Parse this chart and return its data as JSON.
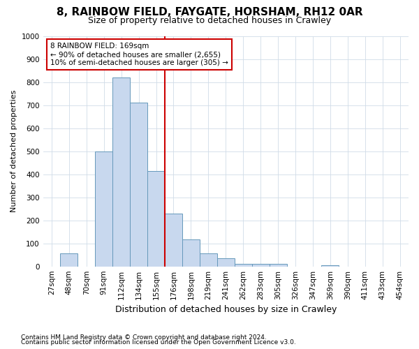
{
  "title": "8, RAINBOW FIELD, FAYGATE, HORSHAM, RH12 0AR",
  "subtitle": "Size of property relative to detached houses in Crawley",
  "xlabel": "Distribution of detached houses by size in Crawley",
  "ylabel": "Number of detached properties",
  "bins": [
    "27sqm",
    "48sqm",
    "70sqm",
    "91sqm",
    "112sqm",
    "134sqm",
    "155sqm",
    "176sqm",
    "198sqm",
    "219sqm",
    "241sqm",
    "262sqm",
    "283sqm",
    "305sqm",
    "326sqm",
    "347sqm",
    "369sqm",
    "390sqm",
    "411sqm",
    "433sqm",
    "454sqm"
  ],
  "bar_values": [
    0,
    57,
    0,
    500,
    820,
    710,
    415,
    230,
    118,
    57,
    35,
    12,
    10,
    10,
    0,
    0,
    5,
    0,
    0,
    0,
    0
  ],
  "bar_color": "#c8d8ee",
  "bar_edge_color": "#6699bb",
  "ylim": [
    0,
    1000
  ],
  "yticks": [
    0,
    100,
    200,
    300,
    400,
    500,
    600,
    700,
    800,
    900,
    1000
  ],
  "vline_x_index": 7,
  "vline_color": "#cc0000",
  "annotation_line1": "8 RAINBOW FIELD: 169sqm",
  "annotation_line2": "← 90% of detached houses are smaller (2,655)",
  "annotation_line3": "10% of semi-detached houses are larger (305) →",
  "annotation_box_facecolor": "#ffffff",
  "annotation_box_edgecolor": "#cc0000",
  "footnote1": "Contains HM Land Registry data © Crown copyright and database right 2024.",
  "footnote2": "Contains public sector information licensed under the Open Government Licence v3.0.",
  "bg_color": "#ffffff",
  "grid_color": "#d0dce8",
  "title_fontsize": 11,
  "subtitle_fontsize": 9,
  "ylabel_fontsize": 8,
  "xlabel_fontsize": 9,
  "tick_fontsize": 7.5,
  "footnote_fontsize": 6.5
}
